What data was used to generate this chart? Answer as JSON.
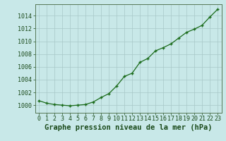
{
  "x": [
    0,
    1,
    2,
    3,
    4,
    5,
    6,
    7,
    8,
    9,
    10,
    11,
    12,
    13,
    14,
    15,
    16,
    17,
    18,
    19,
    20,
    21,
    22,
    23
  ],
  "y": [
    1000.7,
    1000.3,
    1000.1,
    1000.0,
    999.9,
    1000.0,
    1000.1,
    1000.5,
    1001.2,
    1001.8,
    1003.0,
    1004.5,
    1005.0,
    1006.7,
    1007.3,
    1008.5,
    1009.0,
    1009.6,
    1010.5,
    1011.4,
    1011.9,
    1012.5,
    1013.8,
    1015.0
  ],
  "line_color": "#1a6b1a",
  "marker": "+",
  "bg_color": "#c8e8e8",
  "grid_color": "#a8c8c8",
  "xlabel": "Graphe pression niveau de la mer (hPa)",
  "xlabel_fontsize": 7.5,
  "ylabel_ticks": [
    1000,
    1002,
    1004,
    1006,
    1008,
    1010,
    1012,
    1014
  ],
  "ylim": [
    998.8,
    1015.8
  ],
  "xlim": [
    -0.5,
    23.5
  ],
  "tick_fontsize": 6.0,
  "label_color": "#1a4a1a",
  "spine_color": "#557755"
}
